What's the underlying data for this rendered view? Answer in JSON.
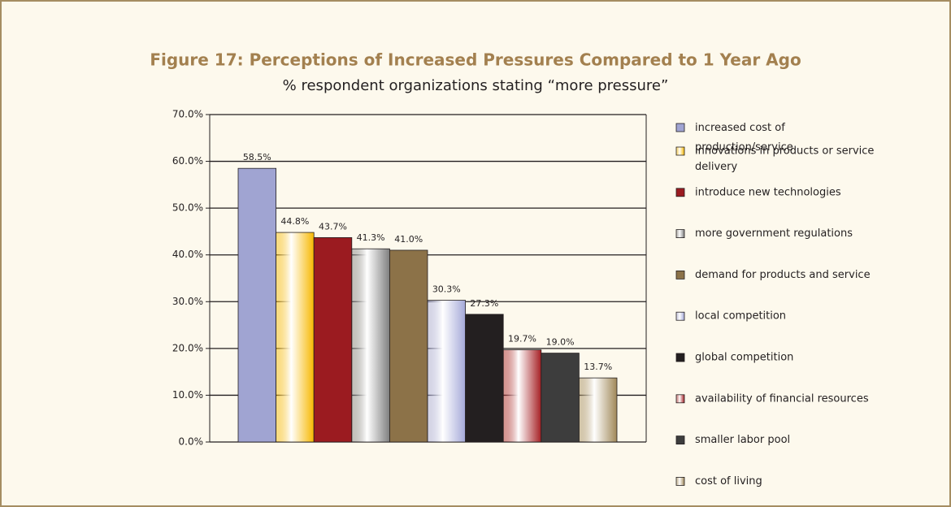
{
  "chart_data": {
    "type": "bar",
    "title": "Figure 17:  Perceptions of Increased Pressures Compared to 1 Year Ago",
    "subtitle": "% respondent organizations stating “more pressure”",
    "categories": [
      null
    ],
    "series": [
      {
        "name": "increased cost of production/service delivery",
        "color": "#a0a4d2",
        "values": [
          58.5
        ],
        "value_labels": [
          "58.5%"
        ]
      },
      {
        "name": "innovations in products or service",
        "color": "#f7b800",
        "gradient": true,
        "values": [
          44.8
        ],
        "value_labels": [
          "44.8%"
        ]
      },
      {
        "name": "introduce new technologies",
        "color": "#9b1b20",
        "values": [
          43.7
        ],
        "value_labels": [
          "43.7%"
        ]
      },
      {
        "name": "more government regulations",
        "color": "#7f7f7f",
        "gradient": true,
        "values": [
          41.3
        ],
        "value_labels": [
          "41.3%"
        ]
      },
      {
        "name": "demand for products and service",
        "color": "#8c7248",
        "values": [
          41.0
        ],
        "value_labels": [
          "41.0%"
        ]
      },
      {
        "name": "local competition",
        "color": "#a4a8d8",
        "gradient": true,
        "values": [
          30.3
        ],
        "value_labels": [
          "30.3%"
        ]
      },
      {
        "name": "global competition",
        "color": "#231f20",
        "values": [
          27.3
        ],
        "value_labels": [
          "27.3%"
        ]
      },
      {
        "name": "availability of financial resources",
        "color": "#a51f24",
        "gradient": true,
        "values": [
          19.7
        ],
        "value_labels": [
          "19.7%"
        ]
      },
      {
        "name": "smaller labor pool",
        "color": "#3d3d3d",
        "values": [
          19.0
        ],
        "value_labels": [
          "19.0%"
        ]
      },
      {
        "name": "cost of living",
        "color": "#a08858",
        "gradient": true,
        "values": [
          13.7
        ],
        "value_labels": [
          "13.7%"
        ]
      }
    ],
    "ylim": [
      0,
      70
    ],
    "yticks": [
      {
        "value": 0,
        "label": "0.0%"
      },
      {
        "value": 10,
        "label": "10.0%"
      },
      {
        "value": 20,
        "label": "20.0%"
      },
      {
        "value": 30,
        "label": "30.0%"
      },
      {
        "value": 40,
        "label": "40.0%"
      },
      {
        "value": 50,
        "label": "50.0%"
      },
      {
        "value": 60,
        "label": "60.0%"
      },
      {
        "value": 70,
        "label": "70.0%"
      }
    ],
    "grid": true,
    "legend": "right"
  }
}
